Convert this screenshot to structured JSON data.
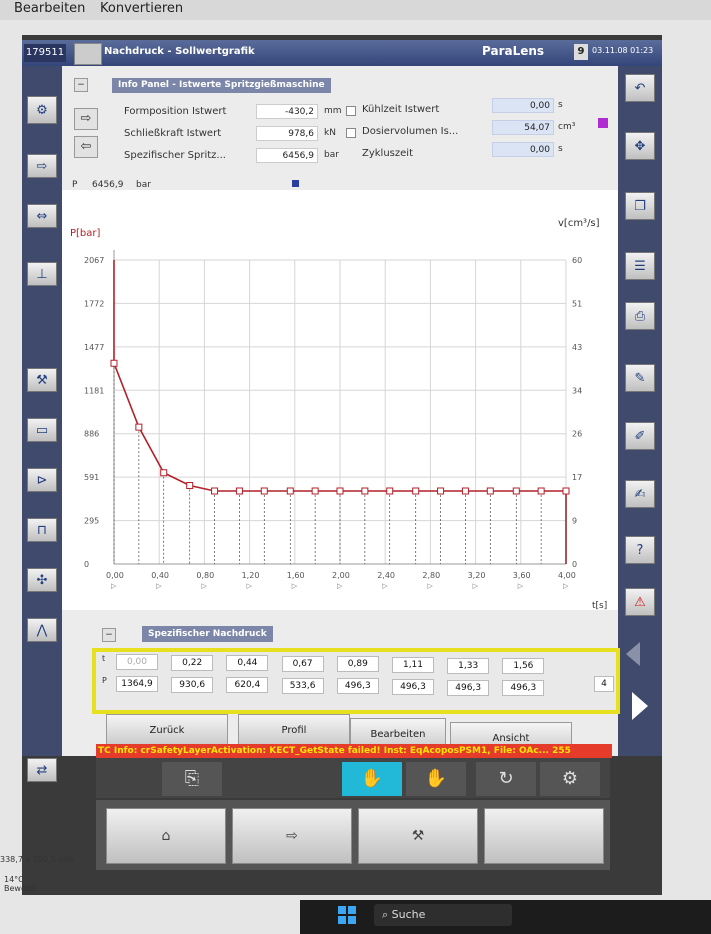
{
  "menu": {
    "items": [
      "Bearbeiten",
      "Konvertieren"
    ]
  },
  "header": {
    "machine_id": "179511",
    "title": "Nachdruck - Sollwertgrafik",
    "brand": "ParaLens",
    "mode": "9",
    "datetime": "03.11.08 01:23"
  },
  "info": {
    "title": "Info Panel - Istwerte Spritzgießmaschine",
    "rows": [
      {
        "label": "Formposition Istwert",
        "value": "-430,2",
        "unit": "mm"
      },
      {
        "label": "Schließkraft Istwert",
        "value": "978,6",
        "unit": "kN"
      },
      {
        "label": "Spezifischer Spritz...",
        "value": "6456,9",
        "unit": "bar"
      }
    ],
    "right_rows": [
      {
        "label": "Kühlzeit Istwert",
        "value": "0,00",
        "unit": "s"
      },
      {
        "label": "Dosiervolumen Is...",
        "value": "54,07",
        "unit": "cm³"
      },
      {
        "label": "Zykluszeit",
        "value": "0,00",
        "unit": "s"
      }
    ],
    "p_label": "P",
    "p_value": "6456,9",
    "p_unit": "bar",
    "accent_color": "#b02bd0",
    "marker_color": "#2a3ea0"
  },
  "chart_data": {
    "type": "line",
    "ylabel_left": "P[bar]",
    "ylabel_right": "v[cm³/s]",
    "xlabel": "t[s]",
    "left_ticks": [
      "0",
      "295",
      "591",
      "886",
      "1181",
      "1477",
      "1772",
      "2067"
    ],
    "right_ticks": [
      "0",
      "9",
      "17",
      "26",
      "34",
      "43",
      "51",
      "60"
    ],
    "x_ticks": [
      "0,00",
      "0,40",
      "0,80",
      "1,20",
      "1,60",
      "2,00",
      "2,40",
      "2,80",
      "3,20",
      "3,60",
      "4,00"
    ],
    "xlim": [
      0,
      4.0
    ],
    "ylim": [
      0,
      2067
    ],
    "grid": true,
    "series": [
      {
        "points": [
          [
            0.0,
            2067
          ],
          [
            0.0,
            1364.9
          ],
          [
            0.22,
            930.6
          ],
          [
            0.44,
            620.4
          ],
          [
            0.67,
            533.6
          ],
          [
            0.89,
            496.3
          ],
          [
            1.11,
            496.3
          ],
          [
            1.33,
            496.3
          ],
          [
            1.56,
            496.3
          ],
          [
            1.78,
            496.3
          ],
          [
            2.0,
            496.3
          ],
          [
            2.22,
            496.3
          ],
          [
            2.44,
            496.3
          ],
          [
            2.67,
            496.3
          ],
          [
            2.89,
            496.3
          ],
          [
            3.11,
            496.3
          ],
          [
            3.33,
            496.3
          ],
          [
            3.56,
            496.3
          ],
          [
            3.78,
            496.3
          ],
          [
            4.0,
            496.3
          ],
          [
            4.0,
            0
          ]
        ],
        "color": "#b2212a"
      }
    ]
  },
  "table": {
    "title": "Spezifischer Nachdruck",
    "row_t_label": "t",
    "row_p_label": "P",
    "t": [
      "0,00",
      "0,22",
      "0,44",
      "0,67",
      "0,89",
      "1,11",
      "1,33",
      "1,56"
    ],
    "p": [
      "1364,9",
      "930,6",
      "620,4",
      "533,6",
      "496,3",
      "496,3",
      "496,3",
      "496,3"
    ],
    "more": "4"
  },
  "buttons": {
    "back": "Zurück",
    "profile": "Profil",
    "edit": "Bearbeiten",
    "view": "Ansicht"
  },
  "error": "TC Info: crSafetyLayerActivation: KECT_GetState failed! Inst: EqAcoposPSM1, File: OAc... 255",
  "os": {
    "dimension_text": "338,7 x 190,5 mm",
    "temp": "14°C",
    "weather": "Bewölkt",
    "search": "Suche"
  }
}
